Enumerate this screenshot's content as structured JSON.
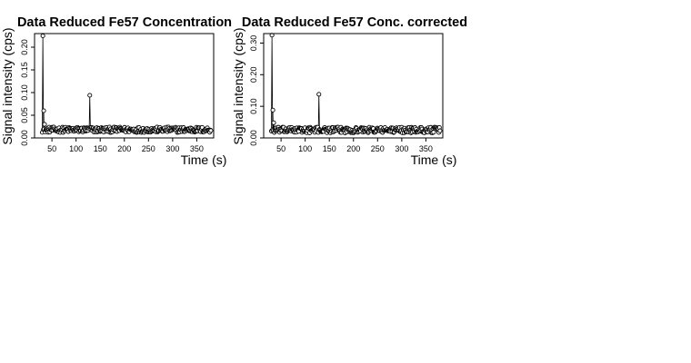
{
  "chart_data": [
    {
      "type": "scatter",
      "title": "Data Reduced Fe57 Concentration",
      "xlabel": "Time (s)",
      "ylabel": "Signal intensity (cps)",
      "xlim": [
        14,
        385
      ],
      "ylim": [
        0,
        0.23
      ],
      "xticks": [
        50,
        100,
        150,
        200,
        250,
        300,
        350
      ],
      "yticks": [
        0.0,
        0.05,
        0.1,
        0.15,
        0.2
      ],
      "ytick_labels": [
        "0.00",
        "0.05",
        "0.10",
        "0.15",
        "0.20"
      ],
      "marker": "open-circle",
      "x_start": 30,
      "x_end": 380,
      "x_step": 1.2,
      "baseline": 0.018,
      "noise": 0.006,
      "peaks": [
        {
          "x": 31,
          "y": 0.225
        },
        {
          "x": 33,
          "y": 0.06
        },
        {
          "x": 35,
          "y": 0.03
        },
        {
          "x": 129,
          "y": 0.094
        }
      ],
      "grid": false,
      "legend": "none",
      "color": "#000000"
    },
    {
      "type": "scatter",
      "title": "Data Reduced Fe57 Conc. corrected",
      "xlabel": "Time (s)",
      "ylabel": "Signal intensity (cps)",
      "xlim": [
        14,
        385
      ],
      "ylim": [
        0,
        0.33
      ],
      "xticks": [
        50,
        100,
        150,
        200,
        250,
        300,
        350
      ],
      "yticks": [
        0.0,
        0.1,
        0.2,
        0.3
      ],
      "ytick_labels": [
        "0.00",
        "0.10",
        "0.20",
        "0.30"
      ],
      "marker": "open-circle",
      "x_start": 30,
      "x_end": 380,
      "x_step": 1.2,
      "baseline": 0.025,
      "noise": 0.009,
      "peaks": [
        {
          "x": 31,
          "y": 0.325
        },
        {
          "x": 33,
          "y": 0.088
        },
        {
          "x": 35,
          "y": 0.048
        },
        {
          "x": 129,
          "y": 0.138
        }
      ],
      "grid": false,
      "legend": "none",
      "color": "#000000"
    }
  ]
}
